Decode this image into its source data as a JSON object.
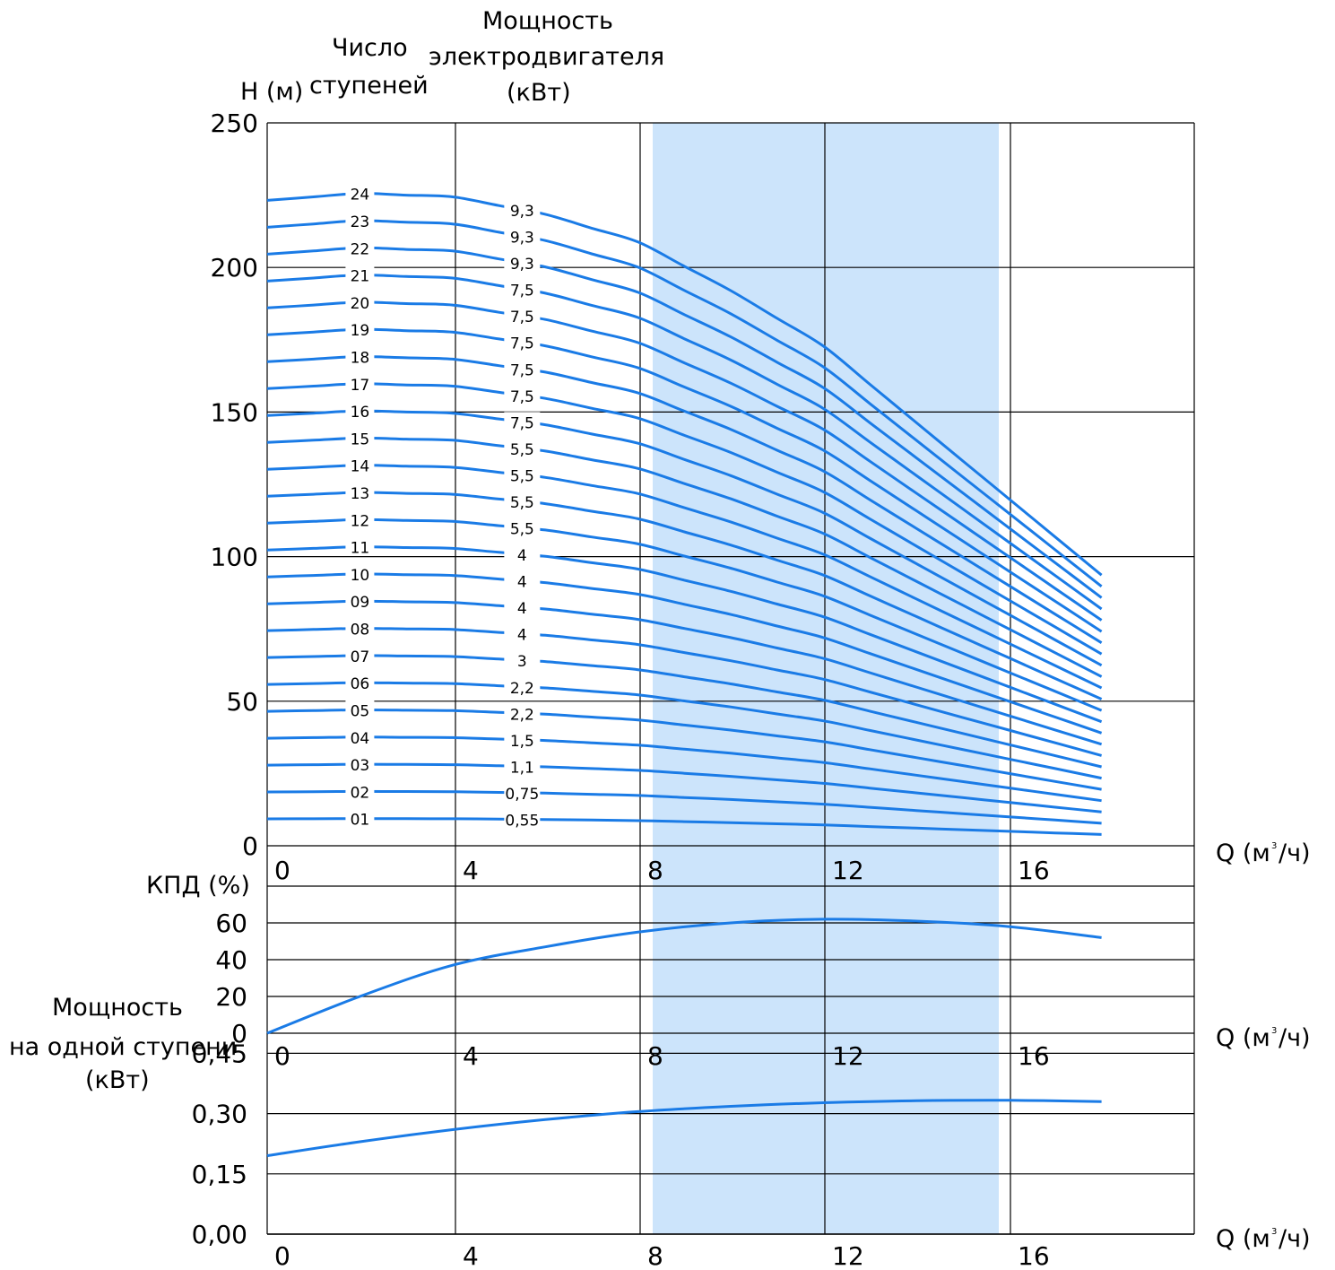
{
  "labels": {
    "h_axis": "H (м)",
    "stages_header_line1": "Число",
    "stages_header_line2": "ступеней",
    "power_header_line1": "Мощность",
    "power_header_line2": "электродвигателя",
    "power_header_line3": "(кВт)",
    "eff_axis": "КПД (%)",
    "stage_power_line1": "Мощность",
    "stage_power_line2": "на одной ступени",
    "stage_power_line3": "(кВт)",
    "q_axis_prefix": "Q (м",
    "q_axis_sup": "3",
    "q_axis_suffix": "/ч)"
  },
  "colors": {
    "curve": "#1a7be6",
    "band": "#cce4fb",
    "grid": "#000000"
  },
  "chart_data": [
    {
      "type": "line",
      "name": "head",
      "x_ticks": [
        "0",
        "4",
        "8",
        "12",
        "16"
      ],
      "xlim": [
        0,
        20
      ],
      "y_ticks": [
        "0",
        "50",
        "100",
        "150",
        "200",
        "250"
      ],
      "ylim": [
        0,
        250
      ],
      "highlight_range": [
        8.3,
        15.7
      ],
      "stage_labels": [
        "01",
        "02",
        "03",
        "04",
        "05",
        "06",
        "07",
        "08",
        "09",
        "10",
        "11",
        "12",
        "13",
        "14",
        "15",
        "16",
        "17",
        "18",
        "19",
        "20",
        "21",
        "22",
        "23",
        "24"
      ],
      "power_labels": [
        "0,55",
        "0,75",
        "1,1",
        "1,5",
        "2,2",
        "2,2",
        "3",
        "4",
        "4",
        "4",
        "4",
        "5,5",
        "5,5",
        "5,5",
        "5,5",
        "7,5",
        "7,5",
        "7,5",
        "7,5",
        "7,5",
        "7,5",
        "9,3",
        "9,3",
        "9,3"
      ],
      "per_stage_curve": {
        "q": [
          0,
          2,
          4,
          6,
          8,
          10,
          12,
          14,
          16,
          18
        ],
        "h": [
          9.3,
          9.4,
          9.35,
          9.1,
          8.7,
          8.0,
          7.2,
          6.1,
          5.0,
          3.9
        ]
      },
      "stages": [
        1,
        2,
        3,
        4,
        5,
        6,
        7,
        8,
        9,
        10,
        11,
        12,
        13,
        14,
        15,
        16,
        17,
        18,
        19,
        20,
        21,
        22,
        23,
        24
      ]
    },
    {
      "type": "line",
      "name": "efficiency",
      "x_ticks": [
        "0",
        "4",
        "8",
        "12",
        "16"
      ],
      "y_ticks": [
        "0",
        "20",
        "40",
        "60"
      ],
      "ylim": [
        0,
        80
      ],
      "x": [
        0,
        2,
        4,
        6,
        8,
        10,
        12,
        14,
        16,
        18
      ],
      "y": [
        0,
        20,
        37,
        47,
        55,
        60,
        62,
        61,
        58,
        52
      ]
    },
    {
      "type": "line",
      "name": "stage_power",
      "x_ticks": [
        "0",
        "4",
        "8",
        "12",
        "16"
      ],
      "y_ticks": [
        "0,00",
        "0,15",
        "0,30",
        "0,45"
      ],
      "ylim": [
        0,
        0.5
      ],
      "x": [
        0,
        2,
        4,
        6,
        8,
        10,
        12,
        14,
        16,
        18
      ],
      "y": [
        0.195,
        0.23,
        0.26,
        0.285,
        0.305,
        0.318,
        0.327,
        0.332,
        0.333,
        0.33
      ]
    }
  ]
}
